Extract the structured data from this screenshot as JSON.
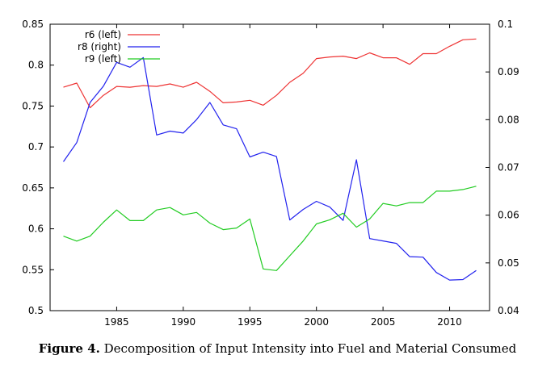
{
  "caption": {
    "figure_label": "Figure 4.",
    "text": "Decomposition of Input Intensity into Fuel and Material Consumed"
  },
  "chart_data": {
    "type": "line",
    "title": "",
    "xlabel": "",
    "ylabel_left": "",
    "ylabel_right": "",
    "x": [
      1981,
      1982,
      1983,
      1984,
      1985,
      1986,
      1987,
      1988,
      1989,
      1990,
      1991,
      1992,
      1993,
      1994,
      1995,
      1996,
      1997,
      1998,
      1999,
      2000,
      2001,
      2002,
      2003,
      2004,
      2005,
      2006,
      2007,
      2008,
      2009,
      2010,
      2011,
      2012
    ],
    "xlim": [
      1980,
      2013
    ],
    "x_ticks": [
      1985,
      1990,
      1995,
      2000,
      2005,
      2010
    ],
    "x_tick_labels": [
      "1985",
      "1990",
      "1995",
      "2000",
      "2005",
      "2010"
    ],
    "ylim_left": [
      0.5,
      0.85
    ],
    "y_ticks_left": [
      0.5,
      0.55,
      0.6,
      0.65,
      0.7,
      0.75,
      0.8,
      0.85
    ],
    "y_tick_labels_left": [
      "0.5",
      "0.55",
      "0.6",
      "0.65",
      "0.7",
      "0.75",
      "0.8",
      "0.85"
    ],
    "ylim_right": [
      0.04,
      0.1
    ],
    "y_ticks_right": [
      0.04,
      0.05,
      0.06,
      0.07,
      0.08,
      0.09,
      0.1
    ],
    "y_tick_labels_right": [
      "0.04",
      "0.05",
      "0.06",
      "0.07",
      "0.08",
      "0.09",
      "0.1"
    ],
    "grid": false,
    "legend_position": "top-left",
    "series": [
      {
        "name": "r6 (left)",
        "axis": "left",
        "color": "#ee3333",
        "values": [
          0.773,
          0.778,
          0.748,
          0.763,
          0.774,
          0.773,
          0.775,
          0.774,
          0.777,
          0.773,
          0.779,
          0.768,
          0.754,
          0.755,
          0.757,
          0.751,
          0.763,
          0.779,
          0.79,
          0.808,
          0.81,
          0.811,
          0.808,
          0.815,
          0.809,
          0.809,
          0.801,
          0.814,
          0.814,
          0.823,
          0.831,
          0.832
        ]
      },
      {
        "name": "r8 (right)",
        "axis": "right",
        "color": "#2222ee",
        "values": [
          0.0712,
          0.0752,
          0.0836,
          0.087,
          0.092,
          0.091,
          0.093,
          0.0768,
          0.0776,
          0.0772,
          0.08,
          0.0836,
          0.0789,
          0.0781,
          0.0722,
          0.0732,
          0.0723,
          0.059,
          0.0612,
          0.0629,
          0.0617,
          0.0589,
          0.0716,
          0.0551,
          0.0546,
          0.0541,
          0.0513,
          0.0512,
          0.048,
          0.0464,
          0.0465,
          0.0484
        ]
      },
      {
        "name": "r9 (left)",
        "axis": "left",
        "color": "#22cc22",
        "values": [
          0.591,
          0.585,
          0.591,
          0.608,
          0.623,
          0.61,
          0.61,
          0.623,
          0.626,
          0.617,
          0.62,
          0.607,
          0.599,
          0.601,
          0.612,
          0.551,
          0.549,
          0.567,
          0.585,
          0.606,
          0.611,
          0.619,
          0.602,
          0.612,
          0.631,
          0.628,
          0.632,
          0.632,
          0.646,
          0.646,
          0.648,
          0.652
        ]
      }
    ]
  }
}
